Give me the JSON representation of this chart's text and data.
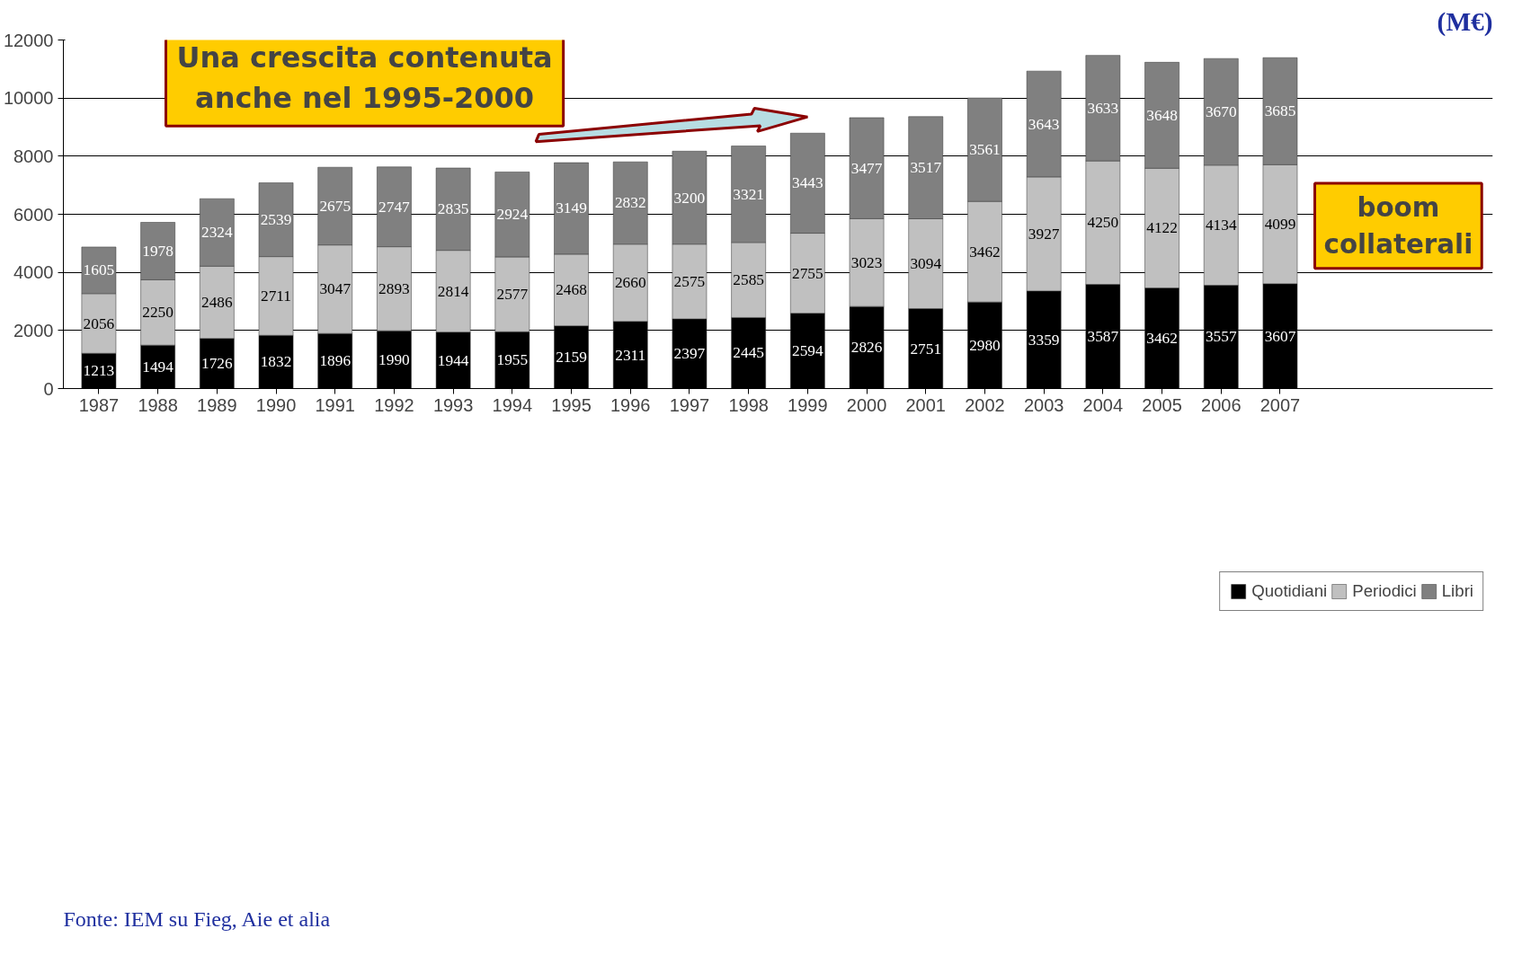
{
  "chart_data": {
    "type": "bar",
    "stacked": true,
    "categories": [
      "1987",
      "1988",
      "1989",
      "1990",
      "1991",
      "1992",
      "1993",
      "1994",
      "1995",
      "1996",
      "1997",
      "1998",
      "1999",
      "2000",
      "2001",
      "2002",
      "2003",
      "2004",
      "2005",
      "2006",
      "2007"
    ],
    "series": [
      {
        "name": "Quotidiani",
        "color": "#000000",
        "values": [
          1213,
          1494,
          1726,
          1832,
          1896,
          1990,
          1944,
          1955,
          2159,
          2311,
          2397,
          2445,
          2594,
          2826,
          2751,
          2980,
          3359,
          3587,
          3462,
          3557,
          3607
        ]
      },
      {
        "name": "Periodici",
        "color": "#c0c0c0",
        "values": [
          2056,
          2250,
          2486,
          2711,
          3047,
          2893,
          2814,
          2577,
          2468,
          2660,
          2575,
          2585,
          2755,
          3023,
          3094,
          3462,
          3927,
          4250,
          4122,
          4134,
          4099
        ]
      },
      {
        "name": "Libri",
        "color": "#808080",
        "values": [
          1605,
          1978,
          2324,
          2539,
          2675,
          2747,
          2835,
          2924,
          3149,
          2832,
          3200,
          3321,
          3443,
          3477,
          3517,
          3561,
          3643,
          3633,
          3648,
          3670,
          3685
        ]
      }
    ],
    "ylim": [
      0,
      12000
    ],
    "yticks": [
      0,
      2000,
      4000,
      6000,
      8000,
      10000,
      12000
    ],
    "grid": "y",
    "legend": "bottom",
    "data_labels": true,
    "annotations": [
      "(M€)",
      "Una crescita contenuta\nanche nel 1995-2000",
      "boom\ncollaterali",
      "Fonte: IEM su Fieg, Aie et alia"
    ]
  }
}
